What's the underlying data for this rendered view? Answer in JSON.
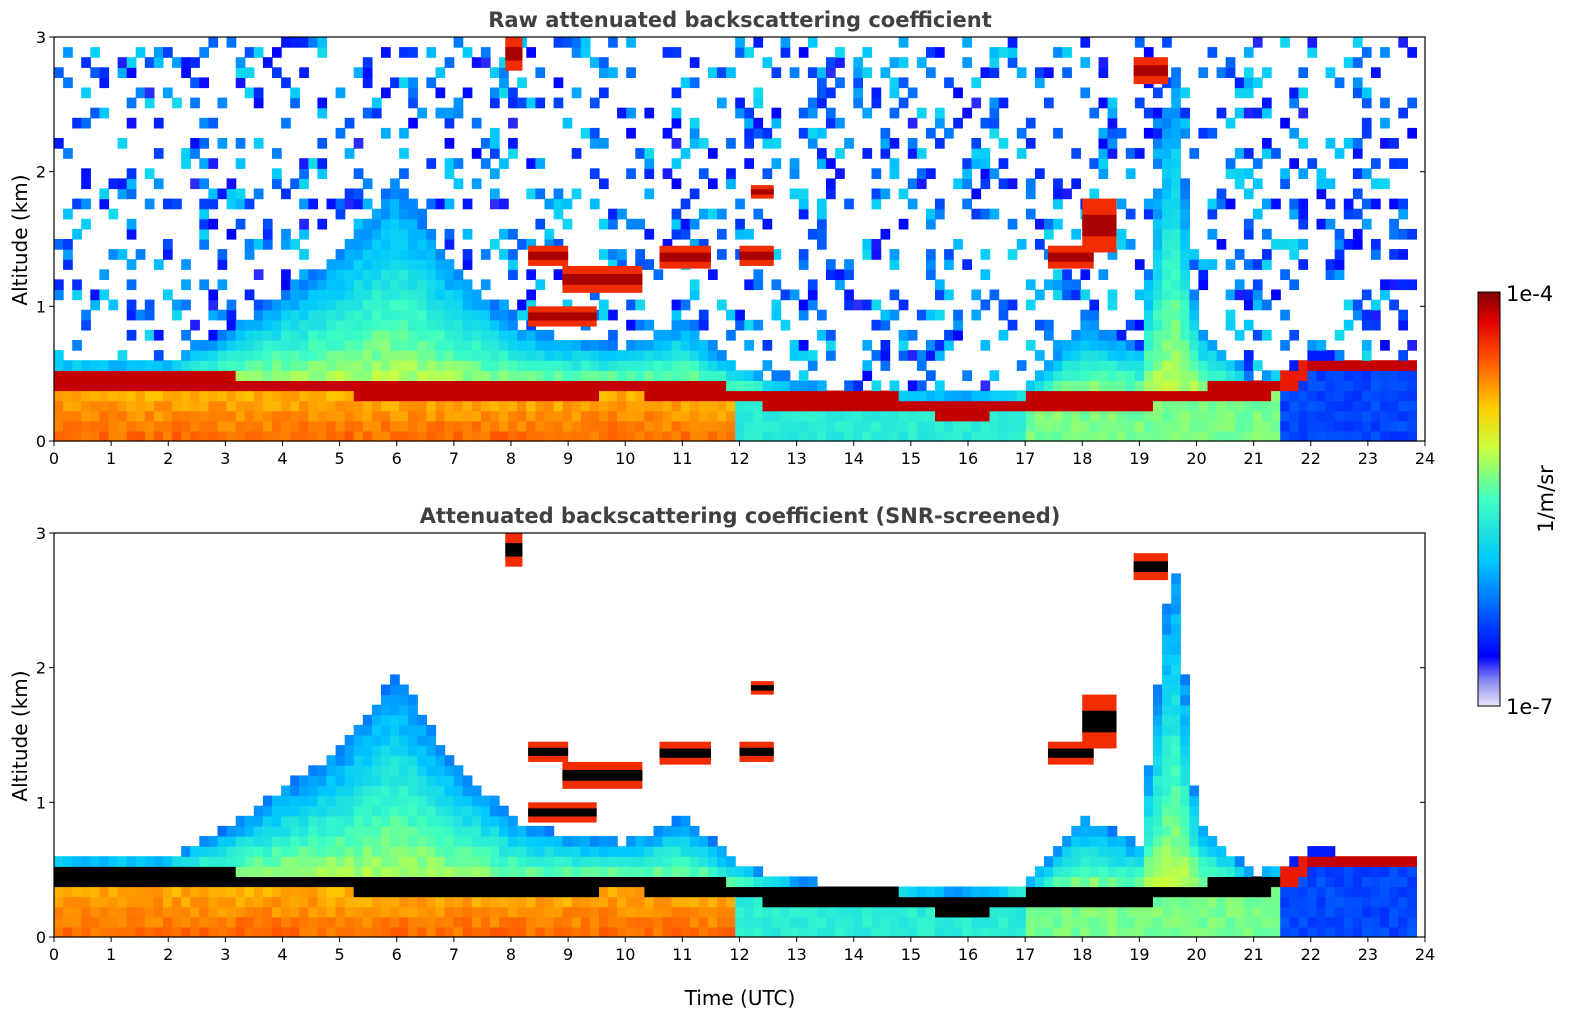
{
  "chart_data": [
    {
      "type": "heatmap",
      "title": "Raw attenuated backscattering coefficient",
      "xlabel": "",
      "ylabel": "Altitude (km)",
      "xlim": [
        0,
        24
      ],
      "ylim": [
        0,
        3
      ],
      "x_ticks": [
        "0",
        "1",
        "2",
        "3",
        "4",
        "5",
        "6",
        "7",
        "8",
        "9",
        "10",
        "11",
        "12",
        "13",
        "14",
        "15",
        "16",
        "17",
        "18",
        "19",
        "20",
        "21",
        "22",
        "23",
        "24"
      ],
      "y_ticks": [
        "0",
        "1",
        "2",
        "3"
      ],
      "screened": false,
      "features": {
        "boundary_layer_top_km": [
          [
            0,
            0.45
          ],
          [
            2,
            0.42
          ],
          [
            4,
            0.4
          ],
          [
            6,
            0.38
          ],
          [
            8,
            0.35
          ],
          [
            10,
            0.4
          ],
          [
            12,
            0.32
          ],
          [
            14,
            0.28
          ],
          [
            16,
            0.22
          ],
          [
            18,
            0.3
          ],
          [
            20,
            0.32
          ],
          [
            21.5,
            0.4
          ],
          [
            22,
            0.55
          ],
          [
            24,
            0.55
          ]
        ],
        "cloud_layers": [
          {
            "t": [
              7.9,
              8.2
            ],
            "alt_km": [
              2.75,
              3.0
            ]
          },
          {
            "t": [
              8.3,
              9.0
            ],
            "alt_km": [
              1.3,
              1.45
            ]
          },
          {
            "t": [
              8.9,
              10.3
            ],
            "alt_km": [
              1.1,
              1.3
            ]
          },
          {
            "t": [
              8.3,
              9.5
            ],
            "alt_km": [
              0.85,
              1.0
            ]
          },
          {
            "t": [
              10.6,
              11.5
            ],
            "alt_km": [
              1.28,
              1.45
            ]
          },
          {
            "t": [
              12.0,
              12.6
            ],
            "alt_km": [
              1.3,
              1.45
            ]
          },
          {
            "t": [
              12.2,
              12.6
            ],
            "alt_km": [
              1.8,
              1.9
            ]
          },
          {
            "t": [
              17.4,
              18.2
            ],
            "alt_km": [
              1.28,
              1.45
            ]
          },
          {
            "t": [
              18.0,
              18.6
            ],
            "alt_km": [
              1.4,
              1.8
            ]
          },
          {
            "t": [
              18.9,
              19.5
            ],
            "alt_km": [
              2.65,
              2.85
            ]
          }
        ]
      }
    },
    {
      "type": "heatmap",
      "title": "Attenuated backscattering coefficient (SNR-screened)",
      "xlabel": "Time (UTC)",
      "ylabel": "Altitude (km)",
      "xlim": [
        0,
        24
      ],
      "ylim": [
        0,
        3
      ],
      "x_ticks": [
        "0",
        "1",
        "2",
        "3",
        "4",
        "5",
        "6",
        "7",
        "8",
        "9",
        "10",
        "11",
        "12",
        "13",
        "14",
        "15",
        "16",
        "17",
        "18",
        "19",
        "20",
        "21",
        "22",
        "23",
        "24"
      ],
      "y_ticks": [
        "0",
        "1",
        "2",
        "3"
      ],
      "screened": true
    }
  ],
  "colorbar": {
    "label": "1/m/sr",
    "max_label": "1e-4",
    "min_label": "1e-7",
    "scale": "log",
    "colormap": "jet"
  }
}
